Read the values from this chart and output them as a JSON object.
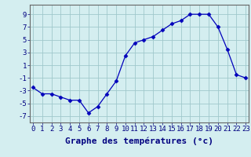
{
  "x": [
    0,
    1,
    2,
    3,
    4,
    5,
    6,
    7,
    8,
    9,
    10,
    11,
    12,
    13,
    14,
    15,
    16,
    17,
    18,
    19,
    20,
    21,
    22,
    23
  ],
  "y": [
    -2.5,
    -3.5,
    -3.5,
    -4.0,
    -4.5,
    -4.5,
    -6.5,
    -5.5,
    -3.5,
    -1.5,
    2.5,
    4.5,
    5.0,
    5.5,
    6.5,
    7.5,
    8.0,
    9.0,
    9.0,
    9.0,
    7.0,
    3.5,
    -0.5,
    -1.0
  ],
  "xlabel": "Graphe des températures (°c)",
  "yticks": [
    -7,
    -5,
    -3,
    -1,
    1,
    3,
    5,
    7,
    9
  ],
  "ytick_labels": [
    "-7",
    "-5",
    "-3",
    "-1",
    "1",
    "3",
    "5",
    "7",
    "9"
  ],
  "xtick_labels": [
    "0",
    "1",
    "2",
    "3",
    "4",
    "5",
    "6",
    "7",
    "8",
    "9",
    "10",
    "11",
    "12",
    "13",
    "14",
    "15",
    "16",
    "17",
    "18",
    "19",
    "20",
    "21",
    "22",
    "23"
  ],
  "ylim": [
    -8.0,
    10.5
  ],
  "xlim": [
    -0.3,
    23.3
  ],
  "line_color": "#0000bb",
  "marker": "D",
  "markersize": 2.5,
  "bg_color": "#d4eef0",
  "grid_color": "#a0c8cc",
  "xlabel_fontsize": 8,
  "tick_fontsize": 6.5,
  "xlabel_fontweight": "bold"
}
